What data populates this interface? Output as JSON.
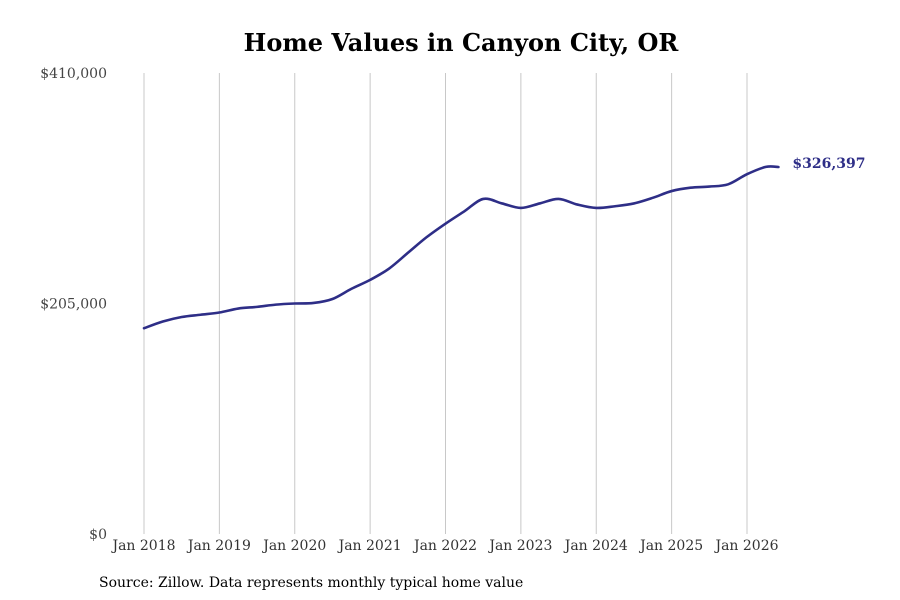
{
  "chart_data": {
    "type": "line",
    "title": "Home Values in Canyon City, OR",
    "xlabel": "",
    "ylabel": "",
    "ylim": [
      0,
      410000
    ],
    "yticks": [
      {
        "value": 0,
        "label": "$0"
      },
      {
        "value": 205000,
        "label": "$205,000"
      },
      {
        "value": 410000,
        "label": "$410,000"
      }
    ],
    "xticks": [
      {
        "value": "2018-01",
        "label": "Jan 2018"
      },
      {
        "value": "2019-01",
        "label": "Jan 2019"
      },
      {
        "value": "2020-01",
        "label": "Jan 2020"
      },
      {
        "value": "2021-01",
        "label": "Jan 2021"
      },
      {
        "value": "2022-01",
        "label": "Jan 2022"
      },
      {
        "value": "2023-01",
        "label": "Jan 2023"
      },
      {
        "value": "2024-01",
        "label": "Jan 2024"
      },
      {
        "value": "2025-01",
        "label": "Jan 2025"
      },
      {
        "value": "2026-01",
        "label": "Jan 2026"
      }
    ],
    "grid": "vertical",
    "line_color": "#2e2e87",
    "series": [
      {
        "points": [
          {
            "x": "2018-01",
            "y": 183000
          },
          {
            "x": "2018-04",
            "y": 189000
          },
          {
            "x": "2018-07",
            "y": 193000
          },
          {
            "x": "2018-10",
            "y": 195000
          },
          {
            "x": "2019-01",
            "y": 197000
          },
          {
            "x": "2019-04",
            "y": 200500
          },
          {
            "x": "2019-07",
            "y": 202000
          },
          {
            "x": "2019-10",
            "y": 204000
          },
          {
            "x": "2020-01",
            "y": 205000
          },
          {
            "x": "2020-04",
            "y": 205500
          },
          {
            "x": "2020-07",
            "y": 209000
          },
          {
            "x": "2020-10",
            "y": 218000
          },
          {
            "x": "2021-01",
            "y": 226000
          },
          {
            "x": "2021-04",
            "y": 236000
          },
          {
            "x": "2021-07",
            "y": 250000
          },
          {
            "x": "2021-10",
            "y": 264000
          },
          {
            "x": "2022-01",
            "y": 276000
          },
          {
            "x": "2022-04",
            "y": 287000
          },
          {
            "x": "2022-07",
            "y": 298000
          },
          {
            "x": "2022-10",
            "y": 294000
          },
          {
            "x": "2023-01",
            "y": 290000
          },
          {
            "x": "2023-04",
            "y": 294000
          },
          {
            "x": "2023-07",
            "y": 298000
          },
          {
            "x": "2023-10",
            "y": 293000
          },
          {
            "x": "2024-01",
            "y": 290000
          },
          {
            "x": "2024-04",
            "y": 291500
          },
          {
            "x": "2024-07",
            "y": 294000
          },
          {
            "x": "2024-10",
            "y": 299000
          },
          {
            "x": "2025-01",
            "y": 305000
          },
          {
            "x": "2025-04",
            "y": 308000
          },
          {
            "x": "2025-07",
            "y": 309000
          },
          {
            "x": "2025-10",
            "y": 311000
          },
          {
            "x": "2026-01",
            "y": 320000
          },
          {
            "x": "2026-04",
            "y": 326500
          },
          {
            "x": "2026-06",
            "y": 326397
          }
        ]
      }
    ],
    "end_label": "$326,397",
    "source": "Source: Zillow. Data represents monthly typical home value"
  }
}
